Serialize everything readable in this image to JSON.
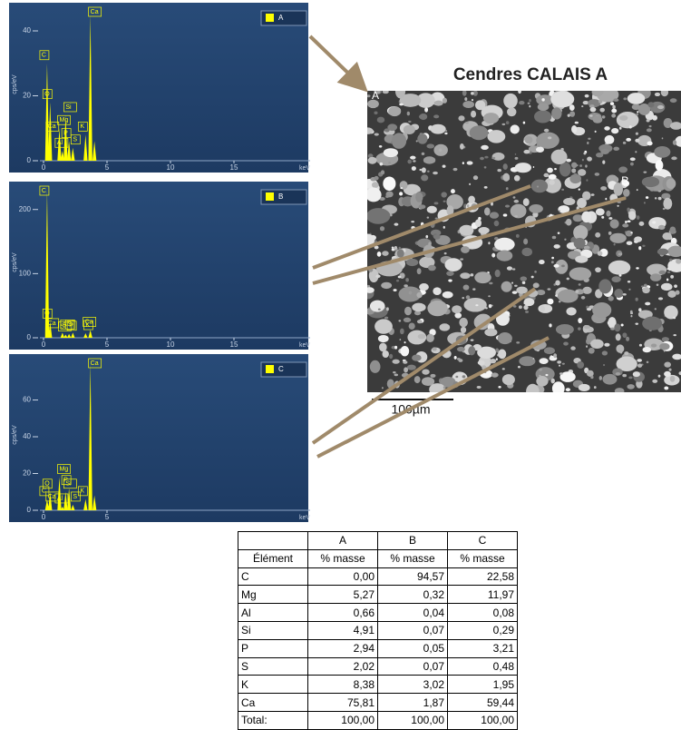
{
  "chart_data": [
    {
      "type": "spectrum",
      "legend": "A",
      "y_label": "cps/eV",
      "x_label": "keV",
      "xlim": [
        0,
        21
      ],
      "xticks": [
        0,
        5,
        10,
        15
      ],
      "ylim": [
        0,
        47
      ],
      "yticks": [
        0,
        20,
        40
      ],
      "series": [
        {
          "name": "A",
          "color": "#ffff00",
          "x": [
            0.28,
            0.34,
            0.52,
            1.25,
            1.49,
            1.74,
            2.01,
            2.31,
            3.31,
            3.69,
            4.01
          ],
          "values": [
            30,
            8,
            18,
            10,
            3,
            14,
            6,
            4,
            8,
            45,
            6
          ]
        }
      ],
      "peak_labels": [
        "C",
        "Ca",
        "O",
        "Mg",
        "Al",
        "Si",
        "P",
        "S",
        "K",
        "Ca",
        null
      ]
    },
    {
      "type": "spectrum",
      "legend": "B",
      "y_label": "cps/eV",
      "x_label": "keV",
      "xlim": [
        0,
        21
      ],
      "xticks": [
        0,
        5,
        10,
        15
      ],
      "ylim": [
        0,
        235
      ],
      "yticks": [
        0,
        100,
        200
      ],
      "series": [
        {
          "name": "B",
          "color": "#ffff00",
          "x": [
            0.28,
            0.34,
            0.52,
            1.49,
            1.74,
            2.01,
            2.31,
            3.31,
            3.69
          ],
          "values": [
            230,
            10,
            25,
            8,
            5,
            6,
            8,
            7,
            12
          ]
        }
      ],
      "peak_labels": [
        "C",
        "Ca",
        "O",
        "Al",
        "Si",
        "P",
        "S",
        "K",
        "Ca"
      ]
    },
    {
      "type": "spectrum",
      "legend": "C",
      "y_label": "cps/eV",
      "x_label": "keV",
      "xlim": [
        0,
        21
      ],
      "xticks": [
        0,
        5
      ],
      "ylim": [
        0,
        82
      ],
      "yticks": [
        0,
        20,
        40,
        60
      ],
      "series": [
        {
          "name": "C",
          "color": "#ffff00",
          "x": [
            0.28,
            0.34,
            0.52,
            1.25,
            1.49,
            1.74,
            2.01,
            2.31,
            3.31,
            3.69,
            4.01
          ],
          "values": [
            6,
            3,
            10,
            18,
            2,
            10,
            12,
            3,
            6,
            80,
            8
          ]
        }
      ],
      "peak_labels": [
        "C",
        "Ca",
        "O",
        "Mg",
        "Al",
        "Si",
        "P",
        "S",
        "K",
        "Ca",
        null
      ]
    }
  ],
  "image": {
    "title": "Cendres CALAIS A",
    "labels": [
      "A",
      "B"
    ],
    "scale": "100µm"
  },
  "table": {
    "header": [
      "A",
      "B",
      "C"
    ],
    "subheader": [
      "Élément",
      "% masse",
      "% masse",
      "% masse"
    ],
    "rows": [
      [
        "C",
        "0,00",
        "94,57",
        "22,58"
      ],
      [
        "Mg",
        "5,27",
        "0,32",
        "11,97"
      ],
      [
        "Al",
        "0,66",
        "0,04",
        "0,08"
      ],
      [
        "Si",
        "4,91",
        "0,07",
        "0,29"
      ],
      [
        "P",
        "2,94",
        "0,05",
        "3,21"
      ],
      [
        "S",
        "2,02",
        "0,07",
        "0,48"
      ],
      [
        "K",
        "8,38",
        "3,02",
        "1,95"
      ],
      [
        "Ca",
        "75,81",
        "1,87",
        "59,44"
      ],
      [
        "Total:",
        "100,00",
        "100,00",
        "100,00"
      ]
    ]
  }
}
